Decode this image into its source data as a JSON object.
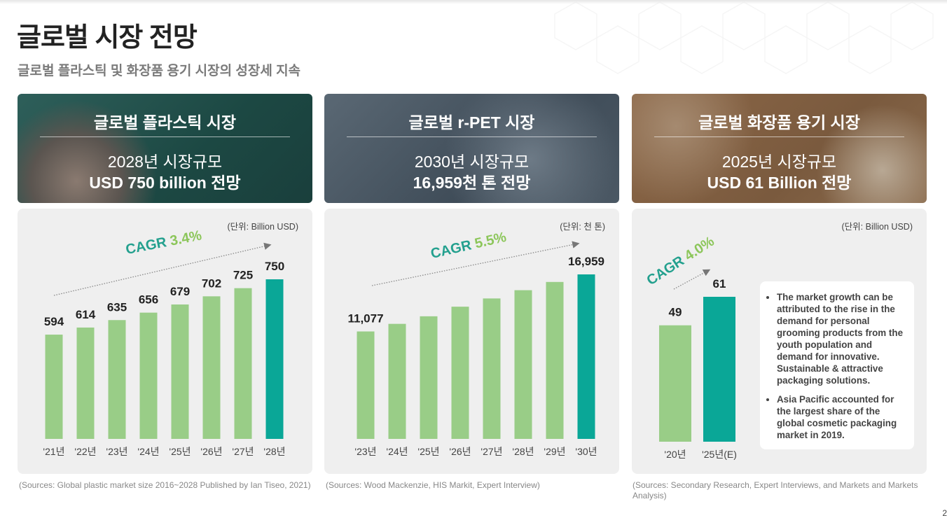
{
  "page": {
    "title": "글로벌 시장 전망",
    "subtitle": "글로벌 플라스틱 및 화장품 용기 시장의 성장세 지속",
    "page_number": "2"
  },
  "colors": {
    "bar": "#99cd87",
    "bar_highlight": "#0aa797",
    "cagr_text": "#23a08e",
    "cagr_value": "#8cc65a",
    "panel_bg": "#efefef"
  },
  "cards": [
    {
      "header_title": "글로벌 플라스틱 시장",
      "header_line1": "2028년 시장규모",
      "header_line2": "USD 750 billion 전망",
      "unit": "(단위: Billion USD)",
      "cagr_label": "CAGR",
      "cagr_value": "3.4%",
      "source": "(Sources: Global plastic market size 2016~2028 Published by Ian Tiseo, 2021)"
    },
    {
      "header_title": "글로벌 r-PET 시장",
      "header_line1": "2030년 시장규모",
      "header_line2": "16,959천 톤 전망",
      "unit": "(단위: 천 톤)",
      "cagr_label": "CAGR",
      "cagr_value": "5.5%",
      "source": "(Sources: Wood Mackenzie, HIS Markit, Expert Interview)"
    },
    {
      "header_title": "글로벌 화장품 용기 시장",
      "header_line1": "2025년 시장규모",
      "header_line2": "USD 61 Billion 전망",
      "unit": "(단위: Billion USD)",
      "cagr_label": "CAGR",
      "cagr_value": "4.0%",
      "source": "(Sources: Secondary Research, Expert Interviews, and Markets and Markets Analysis)",
      "notes": [
        "The market growth can be attributed to the rise in the demand for personal grooming products from the youth population and demand for innovative. Sustainable & attractive packaging solutions.",
        "Asia Pacific accounted for the largest share of the global cosmetic packaging market in 2019."
      ]
    }
  ],
  "chart_data": [
    {
      "type": "bar",
      "title": "글로벌 플라스틱 시장",
      "ylabel": "(단위: Billion USD)",
      "categories": [
        "'21년",
        "'22년",
        "'23년",
        "'24년",
        "'25년",
        "'26년",
        "'27년",
        "'28년"
      ],
      "values": [
        594,
        614,
        635,
        656,
        679,
        702,
        725,
        750
      ],
      "data_labels": [
        "594",
        "614",
        "635",
        "656",
        "679",
        "702",
        "725",
        "750"
      ],
      "highlight_index": 7,
      "ylim": [
        300,
        750
      ],
      "grid": false,
      "annotation": "CAGR 3.4%"
    },
    {
      "type": "bar",
      "title": "글로벌 r-PET 시장",
      "ylabel": "(단위: 천 톤)",
      "categories": [
        "'23년",
        "'24년",
        "'25년",
        "'26년",
        "'27년",
        "'28년",
        "'29년",
        "'30년"
      ],
      "values": [
        11077,
        11860,
        12640,
        13630,
        14480,
        15330,
        16180,
        16959
      ],
      "data_labels": [
        "11,077",
        "",
        "",
        "",
        "",
        "",
        "",
        "16,959"
      ],
      "highlight_index": 7,
      "ylim": [
        0,
        16959
      ],
      "grid": false,
      "annotation": "CAGR 5.5%"
    },
    {
      "type": "bar",
      "title": "글로벌 화장품 용기 시장",
      "ylabel": "(단위: Billion USD)",
      "categories": [
        "'20년",
        "'25년(E)"
      ],
      "values": [
        49,
        61
      ],
      "data_labels": [
        "49",
        "61"
      ],
      "highlight_index": 1,
      "ylim": [
        0,
        61
      ],
      "grid": false,
      "annotation": "CAGR 4.0%"
    }
  ]
}
